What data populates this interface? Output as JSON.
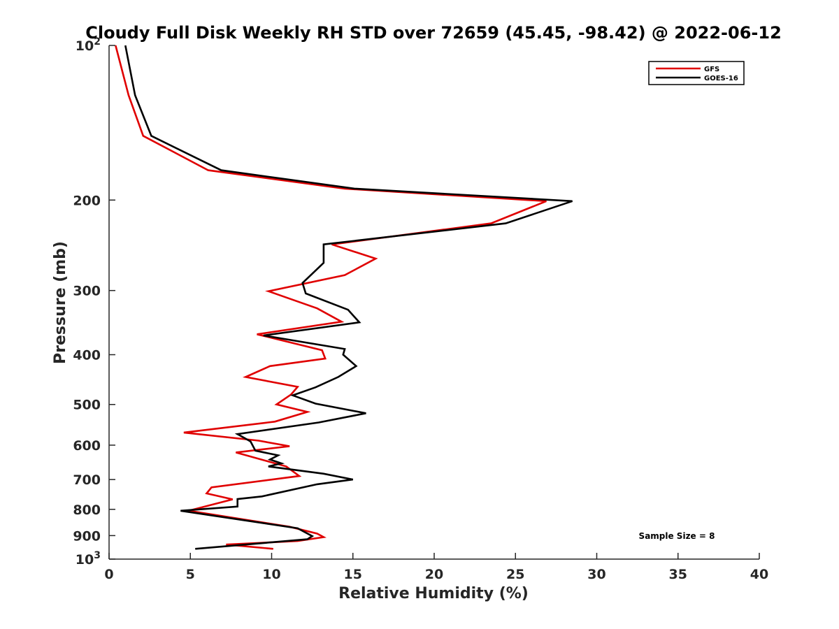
{
  "chart_data": {
    "type": "line",
    "title": "Cloudy Full Disk Weekly RH STD over 72659 (45.45, -98.42) @ 2022-06-12",
    "xlabel": "Relative Humidity (%)",
    "ylabel": "Pressure (mb)",
    "xlim": [
      0,
      40
    ],
    "ylim": [
      100,
      1000
    ],
    "yscale": "log",
    "y_reversed": true,
    "x_ticks": [
      "0",
      "5",
      "10",
      "15",
      "20",
      "25",
      "30",
      "35",
      "40"
    ],
    "y_ticks": [
      {
        "value": 100,
        "label": "10",
        "sup": "2"
      },
      {
        "value": 200,
        "label": "200",
        "sup": ""
      },
      {
        "value": 300,
        "label": "300",
        "sup": ""
      },
      {
        "value": 400,
        "label": "400",
        "sup": ""
      },
      {
        "value": 500,
        "label": "500",
        "sup": ""
      },
      {
        "value": 600,
        "label": "600",
        "sup": ""
      },
      {
        "value": 700,
        "label": "700",
        "sup": ""
      },
      {
        "value": 800,
        "label": "800",
        "sup": ""
      },
      {
        "value": 900,
        "label": "900",
        "sup": ""
      },
      {
        "value": 1000,
        "label": "10",
        "sup": "3"
      }
    ],
    "grid": false,
    "legend_position": "top-right",
    "annotation": "Sample Size = 8",
    "series": [
      {
        "name": "GFS",
        "color": "#e00000",
        "points": [
          [
            0.4,
            100
          ],
          [
            1.2,
            125
          ],
          [
            2.1,
            150
          ],
          [
            6.1,
            175
          ],
          [
            14.5,
            190
          ],
          [
            26.9,
            201
          ],
          [
            23.5,
            222
          ],
          [
            13.7,
            244
          ],
          [
            16.4,
            260
          ],
          [
            14.5,
            280
          ],
          [
            9.8,
            301
          ],
          [
            12.8,
            325
          ],
          [
            14.3,
            345
          ],
          [
            9.1,
            365
          ],
          [
            13.1,
            392
          ],
          [
            13.3,
            407
          ],
          [
            9.9,
            421
          ],
          [
            8.4,
            442
          ],
          [
            11.6,
            462
          ],
          [
            11.2,
            478
          ],
          [
            10.3,
            500
          ],
          [
            12.2,
            517
          ],
          [
            10.2,
            540
          ],
          [
            4.6,
            567
          ],
          [
            9.2,
            588
          ],
          [
            11.1,
            603
          ],
          [
            7.8,
            620
          ],
          [
            10.9,
            660
          ],
          [
            11.7,
            689
          ],
          [
            6.3,
            725
          ],
          [
            6.0,
            745
          ],
          [
            7.6,
            765
          ],
          [
            4.9,
            805
          ],
          [
            11.1,
            865
          ],
          [
            12.8,
            892
          ],
          [
            13.2,
            906
          ],
          [
            11.6,
            922
          ],
          [
            7.2,
            937
          ],
          [
            10.1,
            955
          ]
        ]
      },
      {
        "name": "GOES-16",
        "color": "#000000",
        "points": [
          [
            1.0,
            100
          ],
          [
            1.6,
            125
          ],
          [
            2.6,
            150
          ],
          [
            6.9,
            175
          ],
          [
            15.1,
            190
          ],
          [
            28.5,
            201
          ],
          [
            24.4,
            222
          ],
          [
            13.2,
            244
          ],
          [
            13.2,
            265
          ],
          [
            11.9,
            290
          ],
          [
            12.1,
            304
          ],
          [
            14.7,
            327
          ],
          [
            15.4,
            346
          ],
          [
            9.5,
            367
          ],
          [
            14.5,
            390
          ],
          [
            14.4,
            400
          ],
          [
            15.2,
            421
          ],
          [
            14.1,
            442
          ],
          [
            12.7,
            463
          ],
          [
            11.3,
            480
          ],
          [
            12.7,
            498
          ],
          [
            15.8,
            520
          ],
          [
            12.9,
            542
          ],
          [
            7.9,
            571
          ],
          [
            8.7,
            590
          ],
          [
            9.0,
            615
          ],
          [
            10.4,
            628
          ],
          [
            9.9,
            640
          ],
          [
            10.6,
            651
          ],
          [
            9.8,
            660
          ],
          [
            13.2,
            682
          ],
          [
            15.0,
            700
          ],
          [
            12.8,
            715
          ],
          [
            9.4,
            755
          ],
          [
            7.9,
            764
          ],
          [
            7.9,
            790
          ],
          [
            4.4,
            805
          ],
          [
            11.6,
            871
          ],
          [
            12.5,
            902
          ],
          [
            12.2,
            915
          ],
          [
            5.3,
            955
          ]
        ]
      }
    ]
  }
}
